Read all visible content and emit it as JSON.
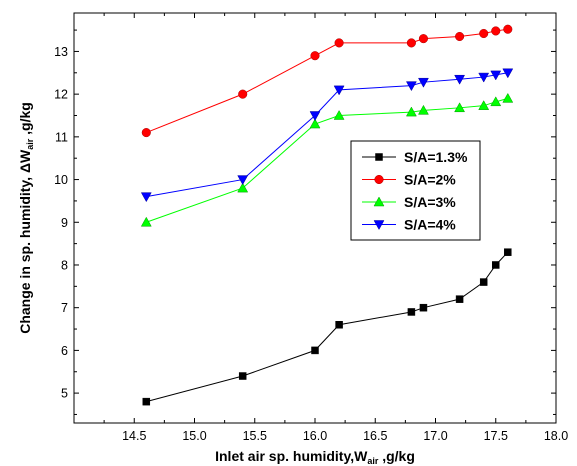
{
  "chart_data": {
    "type": "line",
    "xlabel": "Inlet air sp. humidity,W",
    "xlabel_sub": "air",
    "xlabel_unit": " ,g/kg",
    "ylabel": "Change in sp. humidity, ΔW",
    "ylabel_sub": "air",
    "ylabel_unit": " ,g/kg",
    "xlim": [
      14.0,
      18.0
    ],
    "ylim": [
      4.3,
      13.9
    ],
    "xticks": [
      14.5,
      15.0,
      15.5,
      16.0,
      16.5,
      17.0,
      17.5,
      18.0
    ],
    "xtick_labels": [
      "14.5",
      "15.0",
      "15.5",
      "16.0",
      "16.5",
      "17.0",
      "17.5",
      "18.0"
    ],
    "yticks": [
      5,
      6,
      7,
      8,
      9,
      10,
      11,
      12,
      13
    ],
    "ytick_labels": [
      "5",
      "6",
      "7",
      "8",
      "9",
      "10",
      "11",
      "12",
      "13"
    ],
    "grid": false,
    "legend_position": "center-right",
    "series": [
      {
        "name": "S/A=1.3%",
        "color": "#000000",
        "marker": "square",
        "x": [
          14.6,
          15.4,
          16.0,
          16.2,
          16.8,
          16.9,
          17.2,
          17.4,
          17.5,
          17.6
        ],
        "y": [
          4.8,
          5.4,
          6.0,
          6.6,
          6.9,
          7.0,
          7.2,
          7.6,
          8.0,
          8.3
        ]
      },
      {
        "name": "S/A=2%",
        "color": "#ff0000",
        "marker": "circle",
        "x": [
          14.6,
          15.4,
          16.0,
          16.2,
          16.8,
          16.9,
          17.2,
          17.4,
          17.5,
          17.6
        ],
        "y": [
          11.1,
          12.0,
          12.9,
          13.2,
          13.2,
          13.3,
          13.35,
          13.42,
          13.48,
          13.52
        ]
      },
      {
        "name": "S/A=3%",
        "color": "#00ff00",
        "marker": "triangle-up",
        "x": [
          14.6,
          15.4,
          16.0,
          16.2,
          16.8,
          16.9,
          17.2,
          17.4,
          17.5,
          17.6
        ],
        "y": [
          9.0,
          9.8,
          11.3,
          11.5,
          11.58,
          11.62,
          11.68,
          11.73,
          11.82,
          11.9
        ]
      },
      {
        "name": "S/A=4%",
        "color": "#0000ff",
        "marker": "triangle-down",
        "x": [
          14.6,
          15.4,
          16.0,
          16.2,
          16.8,
          16.9,
          17.2,
          17.4,
          17.5,
          17.6
        ],
        "y": [
          9.6,
          10.0,
          11.5,
          12.1,
          12.2,
          12.28,
          12.35,
          12.4,
          12.45,
          12.5
        ]
      }
    ]
  }
}
